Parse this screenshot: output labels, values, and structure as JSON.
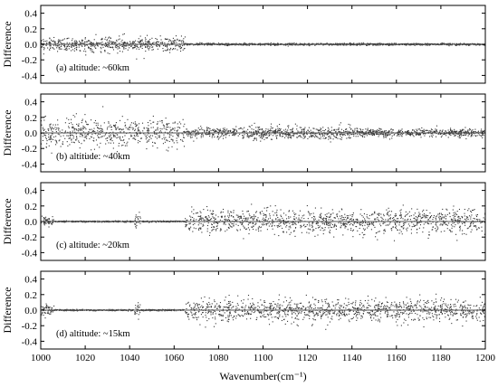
{
  "chart_data": {
    "type": "scatter",
    "xlabel": "Wavenumber(cm⁻¹)",
    "xlim": [
      1000,
      1200
    ],
    "x_ticks": [
      1000,
      1020,
      1040,
      1060,
      1080,
      1100,
      1120,
      1140,
      1160,
      1180,
      1200
    ],
    "ylim": [
      -0.5,
      0.5
    ],
    "y_ticks": [
      0.4,
      0.2,
      0.0,
      -0.2,
      -0.4
    ],
    "y_tick_labels": [
      "0.4",
      "0.2",
      "0.0",
      "-0.2",
      "-0.4"
    ],
    "marker_color": "#333333",
    "panels": [
      {
        "ylabel": "Difference",
        "annotation": "(a) altitude: ~60km",
        "noise_profile": [
          {
            "x_from": 1000,
            "x_to": 1065,
            "spread": 0.045
          },
          {
            "x_from": 1065,
            "x_to": 1200,
            "spread": 0.006
          }
        ]
      },
      {
        "ylabel": "Difference",
        "annotation": "(b) altitude: ~40km",
        "noise_profile": [
          {
            "x_from": 1000,
            "x_to": 1065,
            "spread": 0.09
          },
          {
            "x_from": 1065,
            "x_to": 1140,
            "spread": 0.04
          },
          {
            "x_from": 1140,
            "x_to": 1200,
            "spread": 0.025
          }
        ]
      },
      {
        "ylabel": "Difference",
        "annotation": "(c) altitude: ~20km",
        "noise_profile": [
          {
            "x_from": 1000,
            "x_to": 1006,
            "spread": 0.03
          },
          {
            "x_from": 1006,
            "x_to": 1042,
            "spread": 0.004
          },
          {
            "x_from": 1042,
            "x_to": 1045,
            "spread": 0.04
          },
          {
            "x_from": 1045,
            "x_to": 1065,
            "spread": 0.004
          },
          {
            "x_from": 1065,
            "x_to": 1200,
            "spread": 0.075
          }
        ]
      },
      {
        "ylabel": "Difference",
        "annotation": "(d) altitude: ~15km",
        "noise_profile": [
          {
            "x_from": 1000,
            "x_to": 1006,
            "spread": 0.04
          },
          {
            "x_from": 1006,
            "x_to": 1042,
            "spread": 0.004
          },
          {
            "x_from": 1042,
            "x_to": 1045,
            "spread": 0.04
          },
          {
            "x_from": 1045,
            "x_to": 1065,
            "spread": 0.004
          },
          {
            "x_from": 1065,
            "x_to": 1200,
            "spread": 0.07
          }
        ]
      }
    ]
  }
}
